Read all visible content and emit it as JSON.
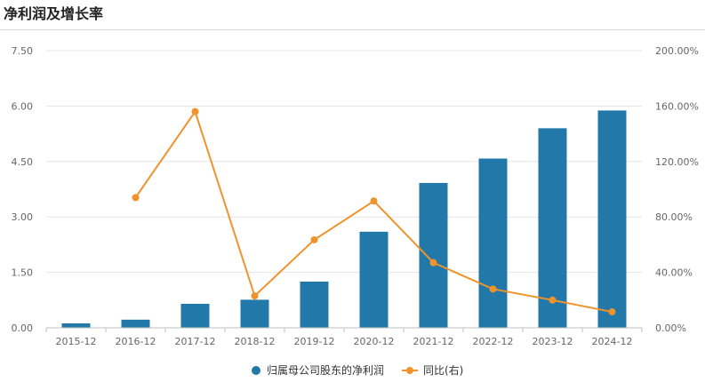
{
  "title": "净利润及增长率",
  "colors": {
    "bar": "#2278a8",
    "line": "#f0932b",
    "grid": "#e6e6e6",
    "axis": "#bfbfbf"
  },
  "chart_data": {
    "type": "bar",
    "categories": [
      "2015-12",
      "2016-12",
      "2017-12",
      "2018-12",
      "2019-12",
      "2020-12",
      "2021-12",
      "2022-12",
      "2023-12",
      "2024-12"
    ],
    "series": [
      {
        "name": "归属母公司股东的净利润",
        "type": "bar",
        "axis": "left",
        "values": [
          0.12,
          0.22,
          0.65,
          0.76,
          1.25,
          2.6,
          3.92,
          4.58,
          5.4,
          5.88
        ]
      },
      {
        "name": "同比(右)",
        "type": "line",
        "axis": "right",
        "values": [
          null,
          94.0,
          156.0,
          23.0,
          63.5,
          91.5,
          47.0,
          28.0,
          20.0,
          11.5
        ]
      }
    ],
    "yticks_left": [
      "0.00",
      "1.50",
      "3.00",
      "4.50",
      "6.00",
      "7.50"
    ],
    "yticks_right": [
      "0.00%",
      "40.00%",
      "80.00%",
      "120.00%",
      "160.00%",
      "200.00%"
    ],
    "ylim_left": [
      0,
      7.5
    ],
    "ylim_right": [
      0,
      200
    ],
    "grid": true,
    "legend_position": "bottom"
  }
}
